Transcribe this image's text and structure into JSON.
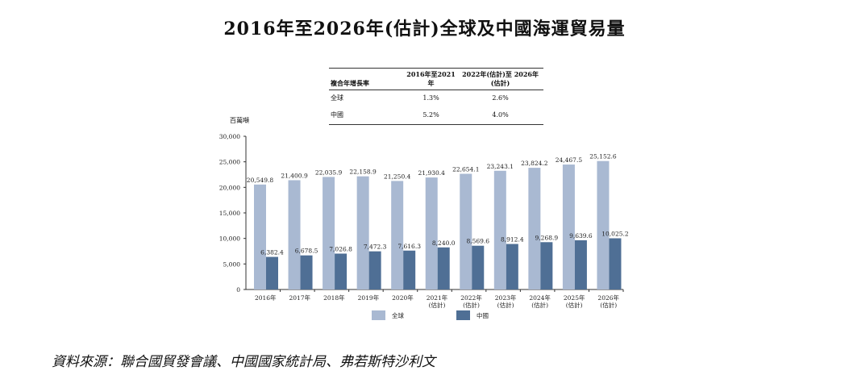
{
  "title": "2016年至2026年(估計)全球及中國海運貿易量",
  "cagr_table": {
    "headers": [
      "複合年增長率",
      "2016年至2021年",
      "2022年(估計)至 2026年(估計)"
    ],
    "rows": [
      [
        "全球",
        "1.3%",
        "2.6%"
      ],
      [
        "中國",
        "5.2%",
        "4.0%"
      ]
    ]
  },
  "source": "資料來源：聯合國貿發會議、中國國家統計局、弗若斯特沙利文",
  "chart_data": {
    "type": "bar",
    "unit_label": "百萬噸",
    "categories": [
      "2016年",
      "2017年",
      "2018年",
      "2019年",
      "2020年",
      "2021年\n(估計)",
      "2022年\n(估計)",
      "2023年\n(估計)",
      "2024年\n(估計)",
      "2025年\n(估計)",
      "2026年\n(估計)"
    ],
    "series": [
      {
        "name": "全球",
        "color": "#a9b9d2",
        "values": [
          20549.8,
          21400.9,
          22035.9,
          22158.9,
          21250.4,
          21930.4,
          22654.1,
          23243.1,
          23824.2,
          24467.5,
          25152.6
        ],
        "labels": [
          "20,549.8",
          "21,400.9",
          "22,035.9",
          "22,158.9",
          "21,250.4",
          "21,930.4",
          "22,654.1",
          "23,243.1",
          "23,824.2",
          "24,467.5",
          "25,152.6"
        ]
      },
      {
        "name": "中國",
        "color": "#4f6f95",
        "values": [
          6382.4,
          6678.5,
          7026.8,
          7472.3,
          7616.3,
          8240.0,
          8569.6,
          8912.4,
          9268.9,
          9639.6,
          10025.2
        ],
        "labels": [
          "6,382.4",
          "6,678.5",
          "7,026.8",
          "7,472.3",
          "7,616.3",
          "8,240.0",
          "8,569.6",
          "8,912.4",
          "9,268.9",
          "9,639.6",
          "10,025.2"
        ]
      }
    ],
    "ylim": [
      0,
      30000
    ],
    "yticks": [
      0,
      5000,
      10000,
      15000,
      20000,
      25000,
      30000
    ],
    "ytick_labels": [
      "0",
      "5,000",
      "10,000",
      "15,000",
      "20,000",
      "25,000",
      "30,000"
    ],
    "grid": false,
    "legend_position": "bottom"
  }
}
